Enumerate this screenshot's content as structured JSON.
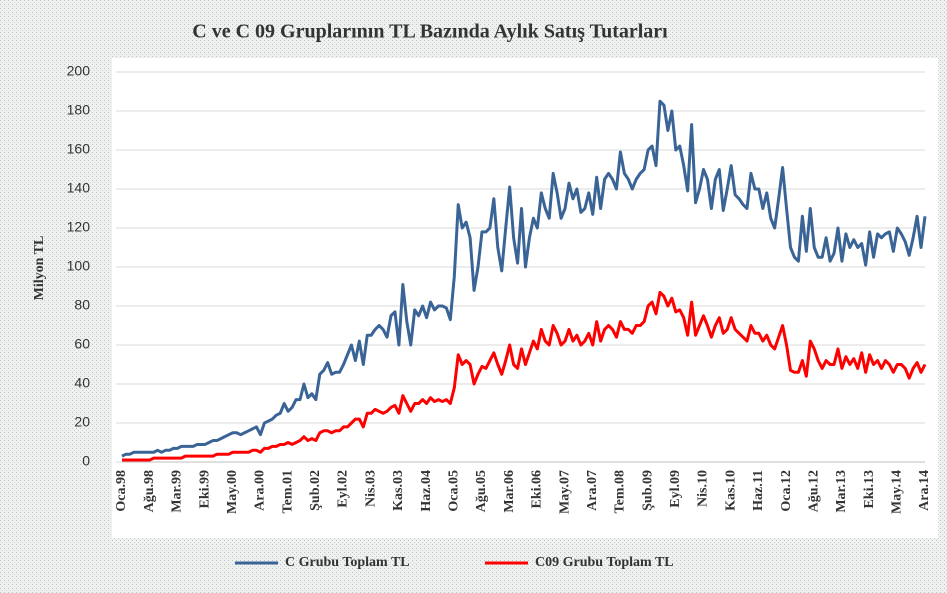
{
  "chart_data": {
    "type": "line",
    "title": "C ve C 09 Gruplarının TL Bazında Aylık Satış Tutarları",
    "y_label": "Milyon TL",
    "categories": [
      "Oca.98",
      null,
      null,
      null,
      null,
      null,
      null,
      "Ağu.98",
      null,
      null,
      null,
      null,
      null,
      null,
      "Mar.99",
      null,
      null,
      null,
      null,
      null,
      null,
      "Eki.99",
      null,
      null,
      null,
      null,
      null,
      null,
      "May.00",
      null,
      null,
      null,
      null,
      null,
      null,
      "Ara.00",
      null,
      null,
      null,
      null,
      null,
      null,
      "Tem.01",
      null,
      null,
      null,
      null,
      null,
      null,
      "Şub.02",
      null,
      null,
      null,
      null,
      null,
      null,
      "Eyl.02",
      null,
      null,
      null,
      null,
      null,
      null,
      "Nis.03",
      null,
      null,
      null,
      null,
      null,
      null,
      "Kas.03",
      null,
      null,
      null,
      null,
      null,
      null,
      "Haz.04",
      null,
      null,
      null,
      null,
      null,
      null,
      "Oca.05",
      null,
      null,
      null,
      null,
      null,
      null,
      "Ağu.05",
      null,
      null,
      null,
      null,
      null,
      null,
      "Mar.06",
      null,
      null,
      null,
      null,
      null,
      null,
      "Eki.06",
      null,
      null,
      null,
      null,
      null,
      null,
      "May.07",
      null,
      null,
      null,
      null,
      null,
      null,
      "Ara.07",
      null,
      null,
      null,
      null,
      null,
      null,
      "Tem.08",
      null,
      null,
      null,
      null,
      null,
      null,
      "Şub.09",
      null,
      null,
      null,
      null,
      null,
      null,
      "Eyl.09",
      null,
      null,
      null,
      null,
      null,
      null,
      "Nis.10",
      null,
      null,
      null,
      null,
      null,
      null,
      "Kas.10",
      null,
      null,
      null,
      null,
      null,
      null,
      "Haz.11",
      null,
      null,
      null,
      null,
      null,
      null,
      "Oca.12",
      null,
      null,
      null,
      null,
      null,
      null,
      "Ağu.12",
      null,
      null,
      null,
      null,
      null,
      null,
      "Mar.13",
      null,
      null,
      null,
      null,
      null,
      null,
      "Eki.13",
      null,
      null,
      null,
      null,
      null,
      null,
      "May.14",
      null,
      null,
      null,
      null,
      null,
      null,
      "Ara.14"
    ],
    "series": [
      {
        "name": "C Grubu Toplam TL",
        "color": "#3a6496",
        "values": [
          3,
          4,
          4,
          5,
          5,
          5,
          5,
          5,
          5,
          6,
          5,
          6,
          6,
          7,
          7,
          8,
          8,
          8,
          8,
          9,
          9,
          9,
          10,
          11,
          11,
          12,
          13,
          14,
          15,
          15,
          14,
          15,
          16,
          17,
          18,
          14,
          20,
          21,
          22,
          24,
          25,
          30,
          26,
          28,
          32,
          32,
          40,
          33,
          35,
          32,
          45,
          47,
          51,
          45,
          46,
          46,
          50,
          55,
          60,
          52,
          62,
          50,
          65,
          65,
          68,
          70,
          68,
          64,
          75,
          77,
          60,
          91,
          72,
          60,
          78,
          75,
          80,
          74,
          82,
          78,
          80,
          80,
          79,
          73,
          95,
          132,
          120,
          123,
          115,
          88,
          100,
          118,
          118,
          120,
          135,
          110,
          98,
          120,
          141,
          115,
          102,
          130,
          100,
          115,
          125,
          120,
          138,
          130,
          125,
          148,
          138,
          125,
          130,
          143,
          135,
          140,
          128,
          130,
          138,
          127,
          146,
          130,
          145,
          148,
          145,
          140,
          159,
          148,
          145,
          140,
          145,
          148,
          150,
          160,
          162,
          152,
          185,
          183,
          170,
          180,
          160,
          162,
          152,
          139,
          173,
          133,
          140,
          150,
          145,
          130,
          145,
          150,
          129,
          140,
          152,
          137,
          135,
          132,
          130,
          148,
          140,
          140,
          130,
          138,
          125,
          120,
          135,
          151,
          130,
          110,
          105,
          103,
          126,
          108,
          130,
          110,
          105,
          105,
          115,
          103,
          107,
          120,
          103,
          117,
          110,
          114,
          110,
          112,
          101,
          118,
          105,
          117,
          115,
          117,
          118,
          108,
          120,
          117,
          113,
          106,
          115,
          126,
          110,
          126
        ]
      },
      {
        "name": "C09 Grubu Toplam TL",
        "color": "#ff0000",
        "values": [
          1,
          1,
          1,
          1,
          1,
          1,
          1,
          1,
          2,
          2,
          2,
          2,
          2,
          2,
          2,
          2,
          3,
          3,
          3,
          3,
          3,
          3,
          3,
          3,
          4,
          4,
          4,
          4,
          5,
          5,
          5,
          5,
          5,
          6,
          6,
          5,
          7,
          7,
          8,
          8,
          9,
          9,
          10,
          9,
          10,
          11,
          13,
          11,
          12,
          11,
          15,
          16,
          16,
          15,
          16,
          16,
          18,
          18,
          20,
          22,
          22,
          18,
          25,
          25,
          27,
          26,
          25,
          26,
          28,
          29,
          25,
          34,
          30,
          26,
          30,
          30,
          32,
          30,
          33,
          31,
          32,
          31,
          32,
          30,
          38,
          55,
          50,
          52,
          50,
          40,
          45,
          49,
          48,
          52,
          56,
          50,
          45,
          52,
          60,
          50,
          48,
          58,
          50,
          56,
          62,
          58,
          68,
          62,
          60,
          70,
          66,
          60,
          62,
          68,
          62,
          65,
          60,
          62,
          66,
          60,
          72,
          62,
          68,
          70,
          68,
          64,
          72,
          68,
          68,
          66,
          70,
          70,
          72,
          80,
          82,
          76,
          87,
          85,
          80,
          84,
          77,
          78,
          74,
          65,
          82,
          65,
          70,
          75,
          70,
          64,
          70,
          74,
          66,
          68,
          74,
          68,
          66,
          64,
          62,
          70,
          66,
          66,
          62,
          65,
          60,
          58,
          64,
          70,
          60,
          47,
          46,
          46,
          52,
          44,
          62,
          58,
          52,
          48,
          52,
          50,
          50,
          58,
          48,
          54,
          50,
          53,
          48,
          56,
          46,
          55,
          50,
          52,
          48,
          52,
          50,
          46,
          50,
          50,
          48,
          43,
          48,
          51,
          46,
          50
        ]
      }
    ],
    "ylim": [
      0,
      200
    ],
    "yticks": [
      0,
      20,
      40,
      60,
      80,
      100,
      120,
      140,
      160,
      180,
      200
    ],
    "grid": true
  }
}
